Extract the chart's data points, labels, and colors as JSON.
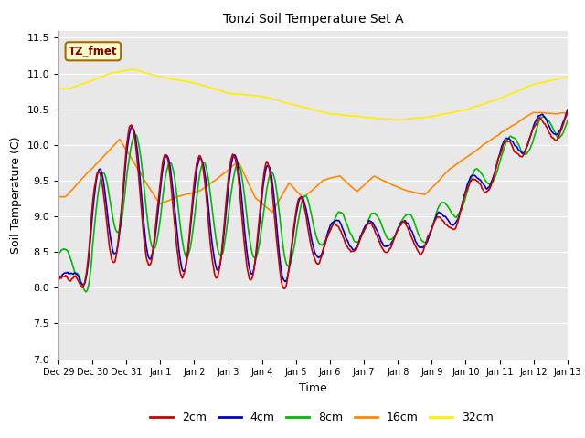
{
  "title": "Tonzi Soil Temperature Set A",
  "xlabel": "Time",
  "ylabel": "Soil Temperature (C)",
  "ylim": [
    7.0,
    11.6
  ],
  "yticks": [
    7.0,
    7.5,
    8.0,
    8.5,
    9.0,
    9.5,
    10.0,
    10.5,
    11.0,
    11.5
  ],
  "legend_label": "TZ_fmet",
  "series_colors": {
    "2cm": "#cc0000",
    "4cm": "#0000cc",
    "8cm": "#00bb00",
    "16cm": "#ff8800",
    "32cm": "#ffee00"
  },
  "xtick_labels": [
    "Dec 29",
    "Dec 30",
    "Dec 31",
    "Jan 1",
    "Jan 2",
    "Jan 3",
    "Jan 4",
    "Jan 5",
    "Jan 6",
    "Jan 7",
    "Jan 8",
    "Jan 9",
    "Jan 10",
    "Jan 11",
    "Jan 12",
    "Jan 13"
  ],
  "n_days": 15
}
